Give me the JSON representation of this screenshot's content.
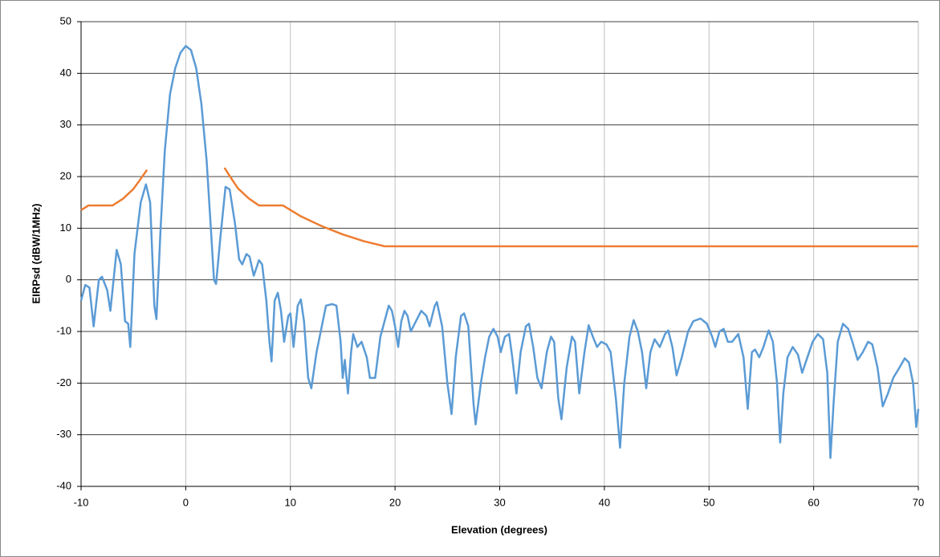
{
  "chart_data": {
    "type": "line",
    "x_label": "Elevation (degrees)",
    "y_label": "EIRPsd (dBW/1MHz)",
    "xlim": [
      -10,
      70
    ],
    "xticks": [
      -10,
      0,
      10,
      20,
      30,
      40,
      50,
      60,
      70
    ],
    "ylim": [
      -40,
      50
    ],
    "yticks": [
      -40,
      -30,
      -20,
      -10,
      0,
      10,
      20,
      30,
      40,
      50
    ],
    "grid": true,
    "series": [
      {
        "color": "#5b9bd5",
        "x": [
          -10,
          -9.6,
          -9.2,
          -8.8,
          -8.3,
          -8,
          -7.5,
          -7.2,
          -6.6,
          -6.2,
          -5.8,
          -5.5,
          -5.3,
          -4.9,
          -4.3,
          -3.8,
          -3.4,
          -3,
          -2.8,
          -2.4,
          -2,
          -1.5,
          -1,
          -0.5,
          0,
          0.5,
          1,
          1.5,
          2,
          2.4,
          2.7,
          2.9,
          3.3,
          3.8,
          4.2,
          4.7,
          5.1,
          5.4,
          5.8,
          6.1,
          6.5,
          7,
          7.3,
          7.7,
          8,
          8.2,
          8.5,
          8.8,
          9.1,
          9.4,
          9.8,
          10,
          10.3,
          10.7,
          11,
          11.3,
          11.7,
          12,
          12.5,
          13,
          13.4,
          14,
          14.4,
          14.8,
          15,
          15.2,
          15.5,
          15.8,
          16,
          16.4,
          16.8,
          17.3,
          17.6,
          18.1,
          18.6,
          19,
          19.4,
          19.7,
          20,
          20.3,
          20.6,
          20.9,
          21.2,
          21.5,
          22,
          22.5,
          23,
          23.3,
          23.8,
          24,
          24.5,
          25,
          25.4,
          25.8,
          26.3,
          26.6,
          27,
          27.5,
          27.7,
          28.2,
          28.6,
          29,
          29.4,
          29.8,
          30.1,
          30.5,
          30.9,
          31.2,
          31.6,
          32,
          32.5,
          32.8,
          33.2,
          33.6,
          34,
          34.5,
          34.9,
          35.2,
          35.6,
          35.9,
          36.4,
          36.9,
          37.2,
          37.6,
          38.1,
          38.5,
          38.9,
          39.3,
          39.7,
          40.2,
          40.6,
          41.1,
          41.5,
          41.9,
          42.4,
          42.8,
          43.2,
          43.6,
          44,
          44.4,
          44.8,
          45.3,
          45.8,
          46.1,
          46.5,
          46.9,
          47.4,
          48,
          48.5,
          49.2,
          49.8,
          50.3,
          50.6,
          51,
          51.4,
          51.8,
          52.2,
          52.8,
          53.3,
          53.7,
          54.1,
          54.4,
          54.8,
          55.2,
          55.7,
          56.1,
          56.5,
          56.8,
          57.1,
          57.5,
          58,
          58.5,
          58.9,
          59.4,
          59.9,
          60.4,
          60.9,
          61.3,
          61.6,
          61.9,
          62.3,
          62.8,
          63.3,
          63.7,
          64.2,
          64.7,
          65.2,
          65.6,
          66.1,
          66.6,
          67.1,
          67.6,
          68.2,
          68.7,
          69.1,
          69.5,
          69.8,
          70
        ],
        "values": [
          -4,
          -1,
          -1.5,
          -9,
          0,
          0.6,
          -2,
          -6,
          5.8,
          3,
          -8,
          -8.5,
          -13,
          5,
          15,
          18.5,
          15,
          -5,
          -7.6,
          10,
          25,
          36,
          41,
          44,
          45.3,
          44.5,
          41,
          34,
          23,
          10,
          0,
          -0.8,
          8,
          18,
          17.5,
          11,
          4,
          3,
          5,
          4.5,
          0.8,
          3.8,
          3,
          -4,
          -12,
          -15.8,
          -4,
          -2.5,
          -6,
          -12,
          -7,
          -6.5,
          -13,
          -5,
          -3.8,
          -8,
          -19,
          -21,
          -14,
          -9,
          -5,
          -4.7,
          -5,
          -12,
          -19,
          -15.5,
          -22,
          -14,
          -10.5,
          -13,
          -12,
          -15,
          -19,
          -19,
          -11,
          -8,
          -5,
          -6,
          -9,
          -13,
          -8,
          -6,
          -7,
          -10,
          -8,
          -6,
          -7,
          -9,
          -5,
          -4.3,
          -9,
          -20,
          -26,
          -15,
          -7,
          -6.5,
          -9,
          -24,
          -28,
          -20,
          -15,
          -11,
          -9.5,
          -11,
          -14,
          -11,
          -10.5,
          -15,
          -22,
          -14,
          -9,
          -8.5,
          -13,
          -19,
          -21,
          -14,
          -11,
          -12,
          -23,
          -27,
          -17,
          -11,
          -12,
          -22,
          -14,
          -8.8,
          -11,
          -13,
          -12,
          -12.5,
          -14,
          -23,
          -32.5,
          -20,
          -11,
          -7.8,
          -10,
          -14,
          -21,
          -14,
          -11.5,
          -13,
          -10.5,
          -9.8,
          -13,
          -18.5,
          -15,
          -10,
          -8,
          -7.5,
          -8.5,
          -11,
          -13,
          -10,
          -9.5,
          -12,
          -12,
          -10.5,
          -15,
          -25,
          -14,
          -13.5,
          -15,
          -13,
          -9.8,
          -12,
          -20,
          -31.5,
          -22,
          -15,
          -13,
          -14.5,
          -18,
          -15,
          -12,
          -10.5,
          -11.5,
          -18,
          -34.5,
          -24,
          -12,
          -8.5,
          -9.5,
          -12,
          -15.5,
          -14,
          -12,
          -12.5,
          -17,
          -24.5,
          -22,
          -19,
          -17,
          -15.2,
          -16,
          -20,
          -28.5,
          -25
        ]
      },
      {
        "color": "#ed7d31",
        "x": [
          -10,
          -9.3,
          -7,
          -6,
          -5,
          -4.5,
          -3.7,
          null,
          3.7,
          4.5,
          5,
          6,
          7,
          9.3,
          11,
          13,
          15,
          17,
          19,
          70
        ],
        "values": [
          13.5,
          14.4,
          14.4,
          15.7,
          17.6,
          19,
          21.3,
          null,
          21.7,
          19.2,
          17.7,
          15.8,
          14.4,
          14.4,
          12.3,
          10.4,
          8.8,
          7.5,
          6.5,
          6.5
        ]
      }
    ]
  }
}
